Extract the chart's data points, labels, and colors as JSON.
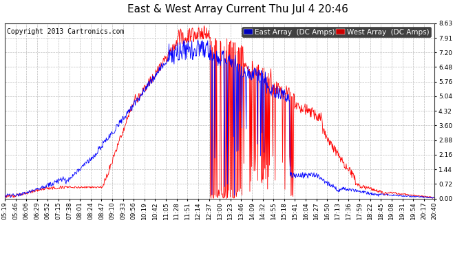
{
  "title": "East & West Array Current Thu Jul 4 20:46",
  "copyright": "Copyright 2013 Cartronics.com",
  "legend_east": "East Array  (DC Amps)",
  "legend_west": "West Array  (DC Amps)",
  "east_color": "#0000ff",
  "west_color": "#ff0000",
  "legend_east_bg": "#0000bb",
  "legend_west_bg": "#cc0000",
  "background_color": "#ffffff",
  "plot_bg_color": "#ffffff",
  "grid_color": "#bbbbbb",
  "grid_style": "--",
  "ylim": [
    0,
    8.63
  ],
  "yticks": [
    0.0,
    0.72,
    1.44,
    2.16,
    2.88,
    3.6,
    4.32,
    5.04,
    5.76,
    6.48,
    7.2,
    7.91,
    8.63
  ],
  "xtick_labels": [
    "05:19",
    "05:46",
    "06:06",
    "06:29",
    "06:52",
    "07:15",
    "07:38",
    "08:01",
    "08:24",
    "08:47",
    "09:10",
    "09:33",
    "09:56",
    "10:19",
    "10:42",
    "11:05",
    "11:28",
    "11:51",
    "12:14",
    "12:37",
    "13:00",
    "13:23",
    "13:46",
    "14:09",
    "14:32",
    "14:55",
    "15:18",
    "15:41",
    "16:04",
    "16:27",
    "16:50",
    "17:13",
    "17:36",
    "17:59",
    "18:22",
    "18:45",
    "19:08",
    "19:31",
    "19:54",
    "20:17",
    "20:40"
  ],
  "title_fontsize": 11,
  "copyright_fontsize": 7,
  "tick_fontsize": 6.5,
  "legend_fontsize": 7.5
}
